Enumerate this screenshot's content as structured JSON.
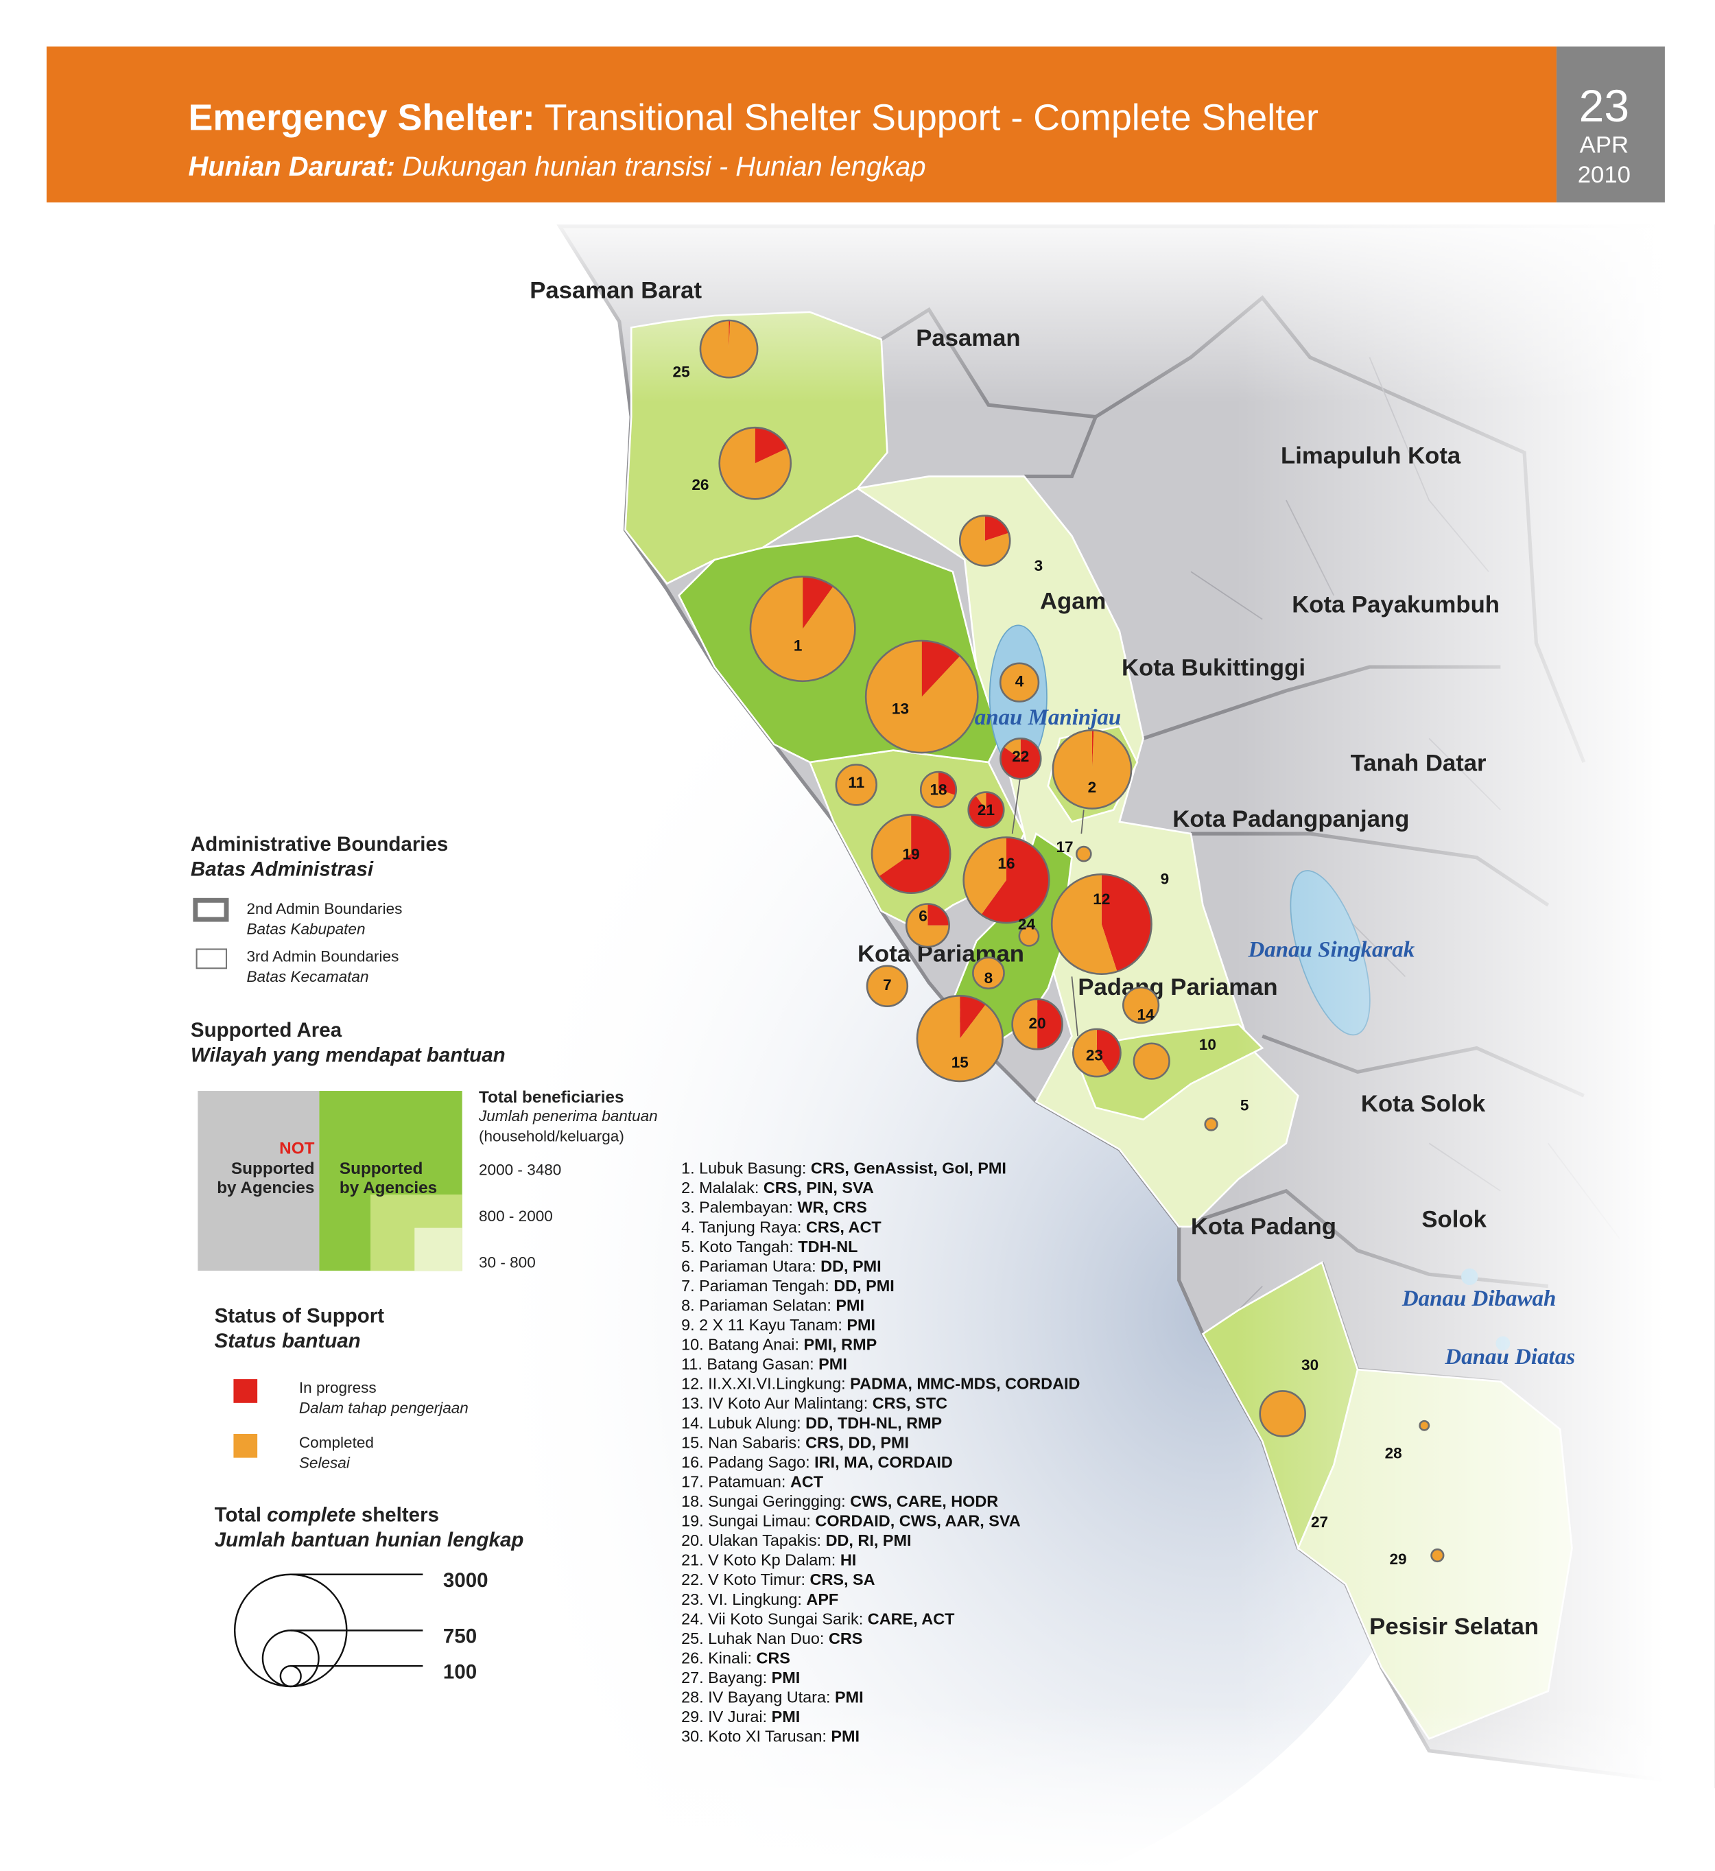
{
  "header": {
    "title_bold": "Emergency Shelter:",
    "title": "Transitional Shelter Support - Complete Shelter",
    "subtitle_bold": "Hunian Darurat:",
    "subtitle": "Dukungan hunian transisi - Hunian lengkap",
    "day": "23",
    "month": "APR",
    "year": "2010"
  },
  "regions": [
    "Pasaman Barat",
    "Pasaman",
    "Limapuluh Kota",
    "Agam",
    "Kota Payakumbuh",
    "Kota Bukittinggi",
    "Tanah Datar",
    "Kota Padangpanjang",
    "Kota Pariaman",
    "Padang Pariaman",
    "Kota Solok",
    "Kota Padang",
    "Solok",
    "Pesisir Selatan"
  ],
  "lakes": [
    "Danau Maninjau",
    "Danau Singkarak",
    "Danau Dibawah",
    "Danau Diatas"
  ],
  "area_labels": [
    "9",
    "27"
  ],
  "pies": [
    {
      "label": "1",
      "in_progress": 260,
      "completed": 2360
    },
    {
      "label": "2",
      "in_progress": 10,
      "completed": 1460
    },
    {
      "label": "3",
      "in_progress": 120,
      "completed": 480
    },
    {
      "label": "4",
      "in_progress": 0,
      "completed": 350
    },
    {
      "label": "5",
      "in_progress": 0,
      "completed": 35
    },
    {
      "label": "6",
      "in_progress": 110,
      "completed": 330
    },
    {
      "label": "7",
      "in_progress": 0,
      "completed": 390
    },
    {
      "label": "8",
      "in_progress": 0,
      "completed": 230
    },
    {
      "label": "10",
      "in_progress": 0,
      "completed": 300
    },
    {
      "label": "11",
      "in_progress": 0,
      "completed": 390
    },
    {
      "label": "12",
      "in_progress": 1070,
      "completed": 1310
    },
    {
      "label": "13",
      "in_progress": 360,
      "completed": 2640
    },
    {
      "label": "14",
      "in_progress": 0,
      "completed": 300
    },
    {
      "label": "15",
      "in_progress": 180,
      "completed": 1570
    },
    {
      "label": "16",
      "in_progress": 1050,
      "completed": 700
    },
    {
      "label": "17",
      "in_progress": 0,
      "completed": 50
    },
    {
      "label": "18",
      "in_progress": 90,
      "completed": 210
    },
    {
      "label": "19",
      "in_progress": 960,
      "completed": 510
    },
    {
      "label": "20",
      "in_progress": 300,
      "completed": 300
    },
    {
      "label": "21",
      "in_progress": 270,
      "completed": 30
    },
    {
      "label": "22",
      "in_progress": 330,
      "completed": 60
    },
    {
      "label": "23",
      "in_progress": 220,
      "completed": 320
    },
    {
      "label": "24",
      "in_progress": 0,
      "completed": 90
    },
    {
      "label": "25",
      "in_progress": 5,
      "completed": 775
    },
    {
      "label": "26",
      "in_progress": 220,
      "completed": 1000
    },
    {
      "label": "28",
      "in_progress": 0,
      "completed": 20
    },
    {
      "label": "29",
      "in_progress": 0,
      "completed": 35
    },
    {
      "label": "30",
      "in_progress": 0,
      "completed": 490
    }
  ],
  "legend": {
    "admin": {
      "title": "Administrative Boundaries",
      "subtitle": "Batas Administrasi",
      "items": [
        {
          "label": "2nd Admin Boundaries",
          "sublabel": "Batas Kabupaten"
        },
        {
          "label": "3rd Admin Boundaries",
          "sublabel": "Batas Kecamatan"
        }
      ]
    },
    "supported": {
      "title": "Supported Area",
      "subtitle": "Wilayah yang mendapat bantuan",
      "not": "NOT",
      "not_lines": [
        "Supported",
        "by Agencies"
      ],
      "yes_lines": [
        "Supported",
        "by Agencies"
      ],
      "total_title": "Total beneficiaries",
      "total_subtitle": "Jumlah penerima bantuan",
      "total_unit": "(household/keluarga)",
      "ranges": [
        "2000 - 3480",
        "800 - 2000",
        "30 - 800"
      ]
    },
    "status": {
      "title": "Status of Support",
      "subtitle": "Status bantuan",
      "items": [
        {
          "label": "In progress",
          "sublabel": "Dalam tahap pengerjaan",
          "color": "#e0231c"
        },
        {
          "label": "Completed",
          "sublabel": "Selesai",
          "color": "#f0a030"
        }
      ]
    },
    "size": {
      "title_parts": [
        "Total ",
        "complete",
        " shelters"
      ],
      "subtitle": "Jumlah bantuan hunian lengkap",
      "values": [
        3000,
        750,
        100
      ]
    }
  },
  "agencies": [
    {
      "name": "1. Lubuk Basung: ",
      "agencies": "CRS, GenAssist, GoI, PMI"
    },
    {
      "name": "2. Malalak: ",
      "agencies": "CRS, PIN, SVA"
    },
    {
      "name": "3. Palembayan: ",
      "agencies": "WR, CRS"
    },
    {
      "name": "4. Tanjung Raya: ",
      "agencies": "CRS, ACT"
    },
    {
      "name": "5. Koto Tangah: ",
      "agencies": "TDH-NL"
    },
    {
      "name": "6. Pariaman Utara: ",
      "agencies": "DD, PMI"
    },
    {
      "name": "7. Pariaman Tengah: ",
      "agencies": "DD, PMI"
    },
    {
      "name": "8. Pariaman Selatan: ",
      "agencies": "PMI"
    },
    {
      "name": "9. 2 X 11 Kayu Tanam: ",
      "agencies": "PMI"
    },
    {
      "name": "10. Batang Anai: ",
      "agencies": "PMI, RMP"
    },
    {
      "name": "11. Batang Gasan: ",
      "agencies": "PMI"
    },
    {
      "name": "12. II.X.XI.VI.Lingkung: ",
      "agencies": "PADMA, MMC-MDS, CORDAID"
    },
    {
      "name": "13. IV Koto Aur Malintang: ",
      "agencies": "CRS, STC"
    },
    {
      "name": "14. Lubuk Alung: ",
      "agencies": "DD, TDH-NL, RMP"
    },
    {
      "name": "15. Nan Sabaris: ",
      "agencies": "CRS, DD, PMI"
    },
    {
      "name": "16. Padang Sago: ",
      "agencies": "IRI, MA, CORDAID"
    },
    {
      "name": "17. Patamuan: ",
      "agencies": "ACT"
    },
    {
      "name": "18. Sungai Geringging: ",
      "agencies": "CWS, CARE, HODR"
    },
    {
      "name": "19. Sungai Limau: ",
      "agencies": "CORDAID, CWS, AAR, SVA"
    },
    {
      "name": "20. Ulakan Tapakis: ",
      "agencies": "DD, RI, PMI"
    },
    {
      "name": "21. V Koto Kp Dalam: ",
      "agencies": "HI"
    },
    {
      "name": "22. V Koto Timur: ",
      "agencies": "CRS, SA"
    },
    {
      "name": "23. VI. Lingkung: ",
      "agencies": "APF"
    },
    {
      "name": "24. Vii Koto Sungai Sarik: ",
      "agencies": "CARE, ACT"
    },
    {
      "name": "25. Luhak Nan Duo: ",
      "agencies": "CRS"
    },
    {
      "name": "26. Kinali: ",
      "agencies": "CRS"
    },
    {
      "name": "27. Bayang: ",
      "agencies": "PMI"
    },
    {
      "name": "28. IV Bayang Utara: ",
      "agencies": "PMI"
    },
    {
      "name": "29. IV Jurai: ",
      "agencies": "PMI"
    },
    {
      "name": "30. Koto XI Tarusan: ",
      "agencies": "PMI"
    }
  ]
}
